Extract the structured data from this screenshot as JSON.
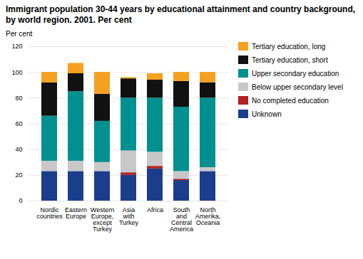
{
  "chart_data": {
    "type": "bar",
    "title": "Immigrant population 30-44 years by educational attainment and country background, by world region. 2001. Per cent",
    "ylabel": "Per cent",
    "categories": [
      "Nordic\ncountries",
      "Eastern\nEurope",
      "Western\nEurope,\nexcept\nTurkey",
      "Asia\nwith\nTurkey",
      "Africa",
      "South\nand\nCentral\nAmerica",
      "North\nAmerika,\nOceania"
    ],
    "series": [
      {
        "name": "Unknown",
        "color": "#1c3d8c",
        "values": [
          23,
          23,
          23,
          20,
          25,
          16,
          23
        ]
      },
      {
        "name": "No completed education",
        "color": "#b22020",
        "values": [
          0,
          0,
          0,
          2,
          2,
          1,
          0
        ]
      },
      {
        "name": "Below upper secondary level",
        "color": "#c8c8c8",
        "values": [
          8,
          8,
          7,
          17,
          11,
          6,
          3
        ]
      },
      {
        "name": "Upper secondary education",
        "color": "#009090",
        "values": [
          35,
          54,
          32,
          41,
          42,
          50,
          54
        ]
      },
      {
        "name": "Tertiary education, short",
        "color": "#111111",
        "values": [
          26,
          14,
          21,
          15,
          14,
          20,
          12
        ]
      },
      {
        "name": "Tertiary education, long",
        "color": "#f5a020",
        "values": [
          8,
          8,
          17,
          1,
          5,
          7,
          8
        ]
      }
    ],
    "ylim": [
      0,
      120
    ],
    "yticks": [
      0,
      20,
      40,
      60,
      80,
      100,
      120
    ],
    "stacked": true,
    "grid": true,
    "legend": "right"
  }
}
